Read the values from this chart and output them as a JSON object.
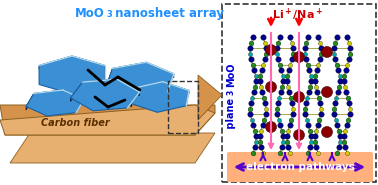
{
  "title_prefix": "MoO",
  "title_suffix": " nanosheet array",
  "title_color": "#1E90FF",
  "title_fontsize": 8.5,
  "carbon_fiber_label": "Carbon fiber",
  "carbon_fiber_color": "#D4924A",
  "carbon_fiber_dark": "#A0682A",
  "carbon_fiber_light": "#E8B070",
  "nanosheet_face_color": "#3B8FD4",
  "nanosheet_top_color": "#5AAFE8",
  "nanosheet_side_dark": "#1A5FA0",
  "nanosheet_edge_highlight": "#ADD8F0",
  "right_box_border": "#333333",
  "li_na_color": "#CC0000",
  "moo3_plane_label": "MoO",
  "moo3_plane_label2": " plane",
  "moo3_plane_color": "#0000CC",
  "electron_label": "electron pathways",
  "electron_bg": "#FFB07C",
  "electron_arrow_color": "#5500CC",
  "ion_color": "#8B0000",
  "chain_green": "#228B22",
  "chain_blue": "#00008B",
  "chain_yellow": "#CCCC00",
  "chain_cyan": "#00AAAA",
  "down_arrow_color1": "#FF0000",
  "down_arrow_color2": "#FF69B4",
  "background_color": "#FFFFFF"
}
